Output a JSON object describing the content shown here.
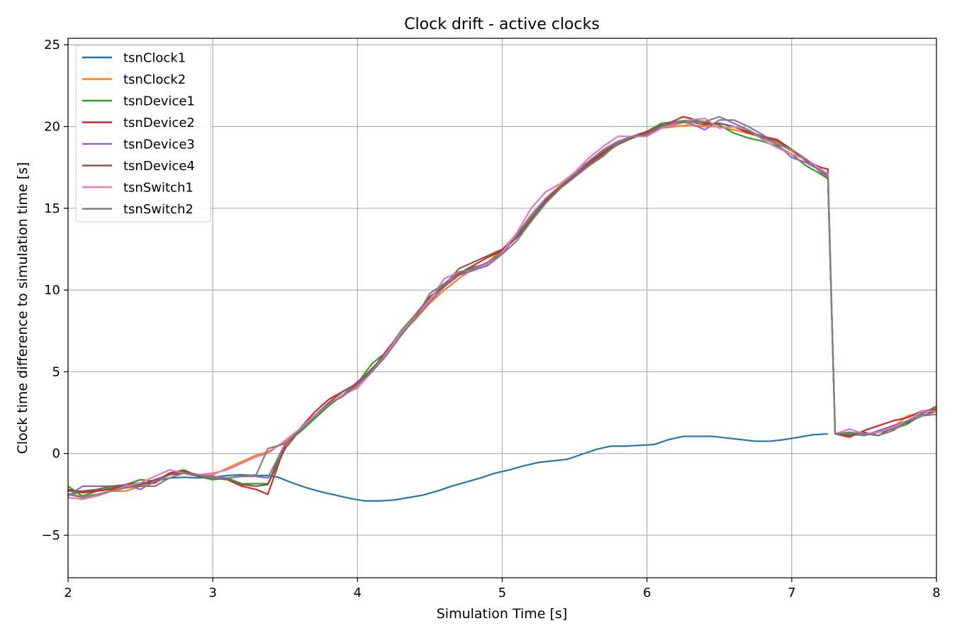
{
  "chart_data": {
    "type": "line",
    "title": "Clock drift - active clocks",
    "xlabel": "Simulation Time [s]",
    "ylabel": "Clock time difference to simulation time [s]",
    "xlim": [
      2,
      8
    ],
    "ylim": [
      -7.6,
      25.4
    ],
    "xticks": [
      2,
      3,
      4,
      5,
      6,
      7,
      8
    ],
    "xtick_labels": [
      "2",
      "3",
      "4",
      "5",
      "6",
      "7",
      "8"
    ],
    "yticks": [
      -5,
      0,
      5,
      10,
      15,
      20,
      25
    ],
    "ytick_labels": [
      "−5",
      "0",
      "5",
      "10",
      "15",
      "20",
      "25"
    ],
    "grid": true,
    "legend_position": "top-left",
    "series": [
      {
        "name": "tsnClock1",
        "color": "#1f77b4",
        "x": [
          2.0,
          2.1,
          2.2,
          2.3,
          2.4,
          2.5,
          2.6,
          2.7,
          2.8,
          2.9,
          3.0,
          3.1,
          3.2,
          3.3,
          3.38,
          3.45,
          3.55,
          3.65,
          3.75,
          3.85,
          3.95,
          4.05,
          4.15,
          4.25,
          4.35,
          4.45,
          4.55,
          4.65,
          4.75,
          4.85,
          4.95,
          5.05,
          5.15,
          5.25,
          5.35,
          5.45,
          5.55,
          5.65,
          5.75,
          5.85,
          5.95,
          6.05,
          6.15,
          6.25,
          6.35,
          6.45,
          6.55,
          6.65,
          6.75,
          6.85,
          6.95,
          7.05,
          7.15,
          7.25
        ],
        "y": [
          -2.5,
          -2.35,
          -2.25,
          -2.2,
          -2.05,
          -1.9,
          -1.7,
          -1.5,
          -1.45,
          -1.5,
          -1.45,
          -1.35,
          -1.3,
          -1.35,
          -1.35,
          -1.45,
          -1.8,
          -2.1,
          -2.35,
          -2.55,
          -2.75,
          -2.9,
          -2.9,
          -2.85,
          -2.7,
          -2.55,
          -2.3,
          -2.0,
          -1.75,
          -1.5,
          -1.2,
          -1.0,
          -0.75,
          -0.55,
          -0.45,
          -0.35,
          -0.05,
          0.25,
          0.45,
          0.45,
          0.5,
          0.55,
          0.85,
          1.05,
          1.05,
          1.05,
          0.95,
          0.85,
          0.75,
          0.75,
          0.85,
          1.0,
          1.15,
          1.2
        ]
      },
      {
        "name": "tsnClock2",
        "color": "#ff7f0e",
        "x": [
          2.0,
          2.1,
          2.2,
          2.3,
          2.4,
          2.5,
          2.6,
          2.7,
          2.8,
          2.9,
          3.0,
          3.1,
          3.2,
          3.3,
          3.38,
          3.5,
          3.6,
          3.7,
          3.8,
          3.9,
          4.0,
          4.1,
          4.2,
          4.3,
          4.4,
          4.5,
          4.6,
          4.7,
          4.8,
          4.9,
          5.0,
          5.1,
          5.2,
          5.3,
          5.4,
          5.5,
          5.6,
          5.7,
          5.8,
          5.9,
          6.0,
          6.1,
          6.2,
          6.3,
          6.4,
          6.5,
          6.6,
          6.7,
          6.8,
          6.9,
          7.0,
          7.1,
          7.2,
          7.25,
          7.3,
          7.4,
          7.5,
          7.6,
          7.7,
          7.8,
          7.9,
          8.0
        ],
        "y": [
          -2.5,
          -2.6,
          -2.5,
          -2.3,
          -2.3,
          -2.0,
          -1.8,
          -1.3,
          -1.2,
          -1.4,
          -1.3,
          -0.9,
          -0.5,
          -0.1,
          0.1,
          0.7,
          1.5,
          2.3,
          3.0,
          3.6,
          4.1,
          5.0,
          6.0,
          7.3,
          8.2,
          9.2,
          10.0,
          10.7,
          11.3,
          11.7,
          12.5,
          13.4,
          14.5,
          15.6,
          16.4,
          17.2,
          17.9,
          18.5,
          19.0,
          19.3,
          19.6,
          19.9,
          20.0,
          20.1,
          20.0,
          20.0,
          19.8,
          19.6,
          19.3,
          19.0,
          18.5,
          17.9,
          17.3,
          17.0,
          1.2,
          1.1,
          1.2,
          1.3,
          1.6,
          2.3,
          2.5,
          2.8
        ]
      },
      {
        "name": "tsnDevice1",
        "color": "#2ca02c",
        "x": [
          2.0,
          2.1,
          2.2,
          2.3,
          2.4,
          2.5,
          2.6,
          2.7,
          2.8,
          2.9,
          3.0,
          3.1,
          3.2,
          3.3,
          3.38,
          3.5,
          3.6,
          3.7,
          3.8,
          3.9,
          4.0,
          4.1,
          4.2,
          4.3,
          4.4,
          4.5,
          4.6,
          4.7,
          4.8,
          4.9,
          5.0,
          5.1,
          5.2,
          5.3,
          5.4,
          5.5,
          5.6,
          5.7,
          5.8,
          5.9,
          6.0,
          6.1,
          6.2,
          6.3,
          6.4,
          6.5,
          6.6,
          6.7,
          6.8,
          6.9,
          7.0,
          7.1,
          7.2,
          7.25,
          7.3,
          7.4,
          7.5,
          7.6,
          7.7,
          7.8,
          7.9,
          8.0
        ],
        "y": [
          -2.0,
          -2.6,
          -2.3,
          -2.1,
          -1.9,
          -1.6,
          -1.7,
          -1.2,
          -1.0,
          -1.4,
          -1.6,
          -1.5,
          -1.85,
          -1.85,
          -1.85,
          0.6,
          1.3,
          2.1,
          2.9,
          3.6,
          4.3,
          5.5,
          6.2,
          7.5,
          8.5,
          9.5,
          10.3,
          10.9,
          11.4,
          11.6,
          12.4,
          13.3,
          14.4,
          15.5,
          16.2,
          17.0,
          17.8,
          18.5,
          19.1,
          19.3,
          19.7,
          20.2,
          20.3,
          20.4,
          20.3,
          20.1,
          19.6,
          19.3,
          19.1,
          18.8,
          18.3,
          17.6,
          17.1,
          16.8,
          1.2,
          1.2,
          1.1,
          1.3,
          1.5,
          1.8,
          2.4,
          2.9
        ]
      },
      {
        "name": "tsnDevice2",
        "color": "#d62728",
        "x": [
          2.0,
          2.1,
          2.2,
          2.3,
          2.4,
          2.5,
          2.6,
          2.7,
          2.8,
          2.9,
          3.0,
          3.1,
          3.2,
          3.3,
          3.38,
          3.5,
          3.6,
          3.7,
          3.8,
          3.9,
          4.0,
          4.1,
          4.2,
          4.3,
          4.4,
          4.5,
          4.6,
          4.7,
          4.8,
          4.9,
          5.0,
          5.1,
          5.2,
          5.3,
          5.4,
          5.5,
          5.6,
          5.7,
          5.8,
          5.9,
          6.0,
          6.1,
          6.2,
          6.25,
          6.3,
          6.4,
          6.5,
          6.6,
          6.7,
          6.8,
          6.9,
          7.0,
          7.1,
          7.2,
          7.25,
          7.3,
          7.4,
          7.5,
          7.6,
          7.7,
          7.8,
          7.9,
          8.0
        ],
        "y": [
          -2.2,
          -2.4,
          -2.3,
          -2.2,
          -1.9,
          -1.8,
          -1.8,
          -1.2,
          -1.1,
          -1.3,
          -1.4,
          -1.6,
          -2.0,
          -2.2,
          -2.5,
          0.5,
          1.5,
          2.5,
          3.3,
          3.8,
          4.3,
          5.1,
          6.3,
          7.4,
          8.3,
          9.3,
          10.2,
          11.0,
          11.5,
          12.0,
          12.4,
          13.2,
          14.3,
          15.4,
          16.3,
          17.1,
          17.8,
          18.4,
          19.0,
          19.4,
          19.7,
          20.0,
          20.4,
          20.6,
          20.5,
          20.2,
          20.2,
          20.0,
          19.6,
          19.4,
          19.2,
          18.6,
          17.9,
          17.5,
          17.4,
          1.2,
          1.0,
          1.4,
          1.7,
          2.0,
          2.2,
          2.6,
          2.7
        ]
      },
      {
        "name": "tsnDevice3",
        "color": "#9467bd",
        "x": [
          2.0,
          2.1,
          2.2,
          2.3,
          2.4,
          2.5,
          2.6,
          2.7,
          2.8,
          2.9,
          3.0,
          3.1,
          3.2,
          3.3,
          3.38,
          3.5,
          3.6,
          3.7,
          3.8,
          3.9,
          4.0,
          4.1,
          4.2,
          4.3,
          4.4,
          4.5,
          4.6,
          4.7,
          4.8,
          4.9,
          5.0,
          5.1,
          5.2,
          5.3,
          5.4,
          5.5,
          5.6,
          5.7,
          5.8,
          5.9,
          6.0,
          6.1,
          6.2,
          6.3,
          6.4,
          6.5,
          6.6,
          6.7,
          6.8,
          6.9,
          7.0,
          7.1,
          7.2,
          7.25,
          7.3,
          7.4,
          7.5,
          7.6,
          7.7,
          7.8,
          7.9,
          8.0
        ],
        "y": [
          -2.6,
          -2.0,
          -2.0,
          -2.0,
          -1.9,
          -2.2,
          -1.7,
          -1.3,
          -1.2,
          -1.3,
          -1.4,
          -1.5,
          -1.4,
          -1.4,
          -1.5,
          0.6,
          1.4,
          2.2,
          3.0,
          3.6,
          4.4,
          5.1,
          6.2,
          7.4,
          8.3,
          9.3,
          10.2,
          10.9,
          11.2,
          11.5,
          12.2,
          13.4,
          14.6,
          15.6,
          16.3,
          17.1,
          17.9,
          18.6,
          19.1,
          19.4,
          19.5,
          20.0,
          20.3,
          20.2,
          19.8,
          20.4,
          20.4,
          20.0,
          19.5,
          18.9,
          18.1,
          17.8,
          17.3,
          16.9,
          1.2,
          1.3,
          1.1,
          1.4,
          1.7,
          2.0,
          2.5,
          2.6
        ]
      },
      {
        "name": "tsnDevice4",
        "color": "#8c564b",
        "x": [
          2.0,
          2.1,
          2.2,
          2.3,
          2.4,
          2.5,
          2.6,
          2.7,
          2.8,
          2.9,
          3.0,
          3.1,
          3.2,
          3.3,
          3.38,
          3.5,
          3.6,
          3.7,
          3.8,
          3.9,
          4.0,
          4.1,
          4.2,
          4.3,
          4.4,
          4.5,
          4.6,
          4.7,
          4.8,
          4.9,
          5.0,
          5.1,
          5.2,
          5.3,
          5.4,
          5.5,
          5.6,
          5.7,
          5.8,
          5.9,
          6.0,
          6.1,
          6.2,
          6.3,
          6.4,
          6.5,
          6.6,
          6.7,
          6.8,
          6.9,
          7.0,
          7.1,
          7.2,
          7.25,
          7.3,
          7.4,
          7.5,
          7.6,
          7.7,
          7.8,
          7.9,
          8.0
        ],
        "y": [
          -2.3,
          -2.3,
          -2.2,
          -2.0,
          -2.0,
          -1.9,
          -1.6,
          -1.3,
          -1.2,
          -1.4,
          -1.5,
          -1.6,
          -1.9,
          -2.0,
          -1.9,
          0.3,
          1.4,
          2.3,
          3.1,
          3.8,
          4.3,
          5.2,
          6.1,
          7.3,
          8.5,
          9.6,
          10.3,
          11.3,
          11.7,
          12.1,
          12.5,
          13.2,
          14.2,
          15.5,
          16.3,
          17.0,
          17.7,
          18.3,
          18.9,
          19.3,
          19.6,
          20.1,
          20.2,
          20.3,
          20.1,
          20.2,
          20.0,
          19.7,
          19.4,
          19.1,
          18.6,
          18.0,
          17.4,
          17.0,
          1.2,
          1.1,
          1.3,
          1.1,
          1.6,
          1.9,
          2.3,
          2.6
        ]
      },
      {
        "name": "tsnSwitch1",
        "color": "#e377c2",
        "x": [
          2.0,
          2.1,
          2.2,
          2.3,
          2.4,
          2.5,
          2.6,
          2.7,
          2.8,
          2.9,
          3.0,
          3.1,
          3.2,
          3.3,
          3.38,
          3.5,
          3.6,
          3.7,
          3.8,
          3.9,
          4.0,
          4.1,
          4.2,
          4.3,
          4.4,
          4.5,
          4.6,
          4.7,
          4.8,
          4.9,
          5.0,
          5.1,
          5.2,
          5.3,
          5.4,
          5.5,
          5.6,
          5.7,
          5.8,
          5.9,
          6.0,
          6.1,
          6.2,
          6.3,
          6.4,
          6.5,
          6.6,
          6.7,
          6.8,
          6.9,
          7.0,
          7.1,
          7.2,
          7.25,
          7.3,
          7.4,
          7.5,
          7.6,
          7.7,
          7.8,
          7.9,
          8.0
        ],
        "y": [
          -2.7,
          -2.8,
          -2.6,
          -2.3,
          -2.0,
          -1.8,
          -1.4,
          -1.0,
          -1.2,
          -1.3,
          -1.2,
          -1.0,
          -0.6,
          -0.2,
          0.0,
          0.8,
          1.5,
          2.3,
          3.0,
          3.6,
          4.0,
          5.0,
          6.1,
          7.4,
          8.4,
          9.4,
          10.7,
          11.1,
          11.3,
          11.6,
          12.3,
          13.5,
          15.0,
          16.0,
          16.5,
          17.2,
          18.1,
          18.8,
          19.4,
          19.4,
          19.4,
          19.9,
          20.1,
          20.4,
          20.5,
          19.9,
          20.0,
          19.8,
          19.2,
          18.7,
          18.3,
          18.0,
          17.4,
          17.1,
          1.2,
          1.5,
          1.2,
          1.3,
          1.6,
          2.0,
          2.6,
          2.6
        ]
      },
      {
        "name": "tsnSwitch2",
        "color": "#7f7f7f",
        "x": [
          2.0,
          2.1,
          2.2,
          2.3,
          2.4,
          2.5,
          2.6,
          2.7,
          2.8,
          2.9,
          3.0,
          3.1,
          3.2,
          3.3,
          3.38,
          3.5,
          3.6,
          3.7,
          3.8,
          3.9,
          4.0,
          4.1,
          4.2,
          4.3,
          4.4,
          4.5,
          4.6,
          4.7,
          4.8,
          4.9,
          5.0,
          5.1,
          5.2,
          5.3,
          5.4,
          5.5,
          5.6,
          5.7,
          5.8,
          5.9,
          6.0,
          6.1,
          6.2,
          6.3,
          6.4,
          6.5,
          6.6,
          6.7,
          6.8,
          6.9,
          7.0,
          7.1,
          7.2,
          7.25,
          7.3,
          7.4,
          7.5,
          7.6,
          7.7,
          7.8,
          7.9,
          8.0
        ],
        "y": [
          -2.5,
          -2.7,
          -2.5,
          -2.3,
          -2.1,
          -2.0,
          -2.0,
          -1.5,
          -1.2,
          -1.3,
          -1.5,
          -1.5,
          -1.4,
          -1.3,
          0.3,
          0.6,
          1.4,
          2.2,
          3.0,
          3.5,
          4.2,
          5.0,
          6.0,
          7.2,
          8.3,
          9.8,
          10.4,
          11.1,
          11.3,
          11.7,
          12.2,
          13.0,
          14.2,
          15.3,
          16.2,
          16.9,
          17.6,
          18.2,
          19.0,
          19.4,
          19.5,
          20.0,
          20.2,
          20.3,
          20.3,
          20.6,
          20.2,
          19.8,
          19.3,
          18.9,
          18.6,
          18.0,
          17.2,
          16.9,
          1.2,
          1.3,
          1.2,
          1.1,
          1.4,
          2.0,
          2.3,
          2.4
        ]
      }
    ]
  }
}
